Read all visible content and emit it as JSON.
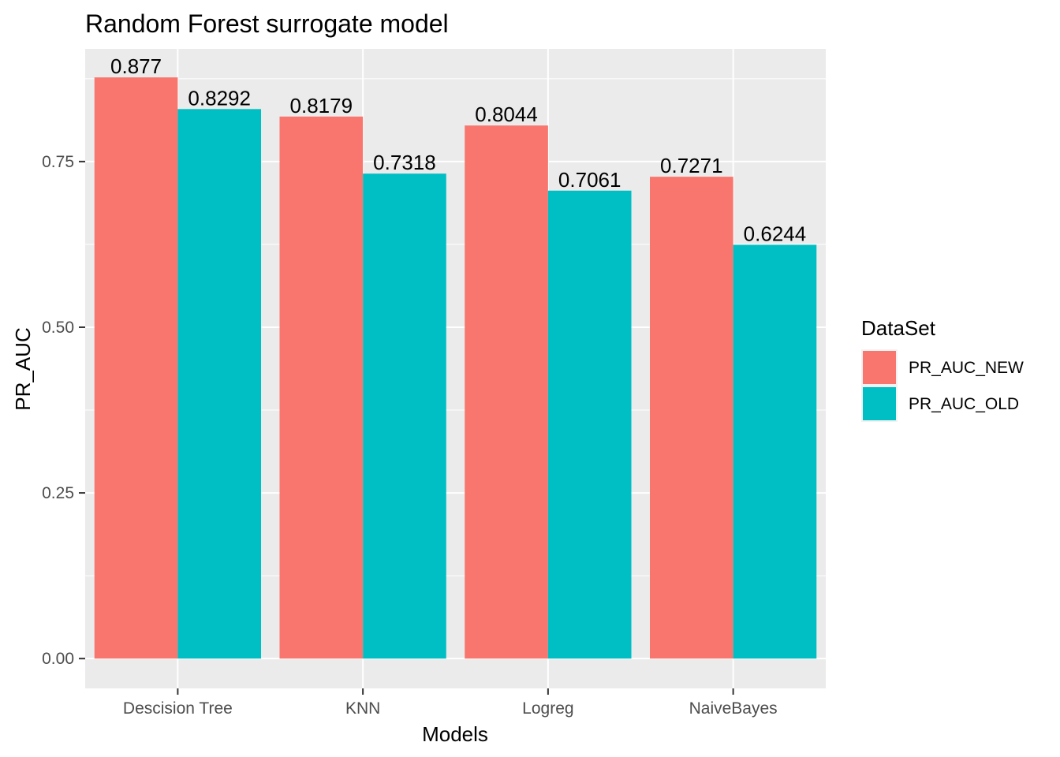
{
  "chart_data": {
    "type": "bar",
    "title": "Random Forest surrogate model",
    "xlabel": "Models",
    "ylabel": "PR_AUC",
    "categories": [
      "Descision Tree",
      "KNN",
      "Logreg",
      "NaiveBayes"
    ],
    "series": [
      {
        "name": "PR_AUC_NEW",
        "values": [
          0.877,
          0.8179,
          0.8044,
          0.7271
        ],
        "labels": [
          "0.877",
          "0.8179",
          "0.8044",
          "0.7271"
        ],
        "color": "#F8766D"
      },
      {
        "name": "PR_AUC_OLD",
        "values": [
          0.8292,
          0.7318,
          0.7061,
          0.6244
        ],
        "labels": [
          "0.8292",
          "0.7318",
          "0.7061",
          "0.6244"
        ],
        "color": "#00BFC4"
      }
    ],
    "yticks": [
      0,
      0.25,
      0.5,
      0.75
    ],
    "ytick_labels": [
      "0.00",
      "0.25",
      "0.50",
      "0.75"
    ],
    "ylim": [
      -0.045,
      0.92
    ],
    "legend": {
      "title": "DataSet",
      "position": "right"
    },
    "grid": true,
    "panel_background": "#EBEBEB",
    "grid_color": "#FFFFFF"
  }
}
